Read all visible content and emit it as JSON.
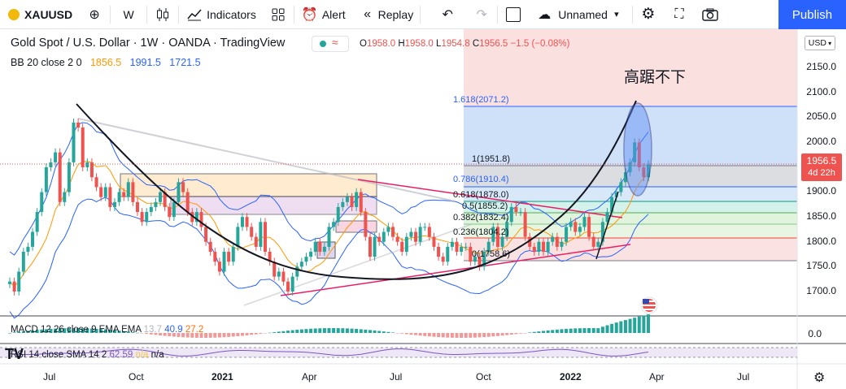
{
  "toolbar": {
    "symbol": "XAUUSD",
    "interval": "W",
    "indicators_label": "Indicators",
    "alert_label": "Alert",
    "replay_label": "Replay",
    "layout_name": "Unnamed",
    "publish_label": "Publish"
  },
  "header": {
    "title": "Gold Spot / U.S. Dollar · 1W · OANDA · TradingView",
    "ohlc": {
      "o_key": "O",
      "o": "1958.0",
      "h_key": "H",
      "h": "1958.0",
      "l_key": "L",
      "l": "1954.8",
      "c_key": "C",
      "c": "1956.5",
      "change": "−1.5 (−0.08%)"
    },
    "bb_label": "BB 20 close 2 0",
    "bb_basis": "1856.5",
    "bb_upper": "1991.5",
    "bb_lower": "1721.5"
  },
  "price_axis": {
    "currency": "USD",
    "ticks": [
      "2150.0",
      "2100.0",
      "2050.0",
      "2000.0",
      "1950.0",
      "1900.0",
      "1850.0",
      "1800.0",
      "1750.0",
      "1700.0"
    ],
    "last_price": "1956.5",
    "countdown": "4d 22h",
    "macd_zero": "0.0"
  },
  "time_axis": [
    "Jul",
    "Oct",
    "2021",
    "Apr",
    "Jul",
    "Oct",
    "2022",
    "Apr",
    "Jul"
  ],
  "annotation": "高踞不下",
  "fib_levels": [
    {
      "label": "1.618(2071.2)",
      "color": "#2962ff"
    },
    {
      "label": "1(1951.8)",
      "color": "#131722"
    },
    {
      "label": "0.786(1910.4)",
      "color": "#2962ff"
    },
    {
      "label": "0.618(1878.0)",
      "color": "#131722"
    },
    {
      "label": "0.5(1855.2)",
      "color": "#131722"
    },
    {
      "label": "0.382(1832.4)",
      "color": "#131722"
    },
    {
      "label": "0.236(1804.2)",
      "color": "#131722"
    },
    {
      "label": "0(1758.6)",
      "color": "#131722"
    }
  ],
  "macd": {
    "label": "MACD 12 26 close 9 EMA EMA",
    "v1": "13.7",
    "v2": "40.9",
    "v3": "27.2"
  },
  "rsi": {
    "label": "RSI 14 close SMA 14 2",
    "v1": "62.59",
    "v2": "n/a",
    "v3": "n/a"
  },
  "colors": {
    "up": "#26a69a",
    "down": "#ef5350",
    "accent": "#2962ff"
  }
}
